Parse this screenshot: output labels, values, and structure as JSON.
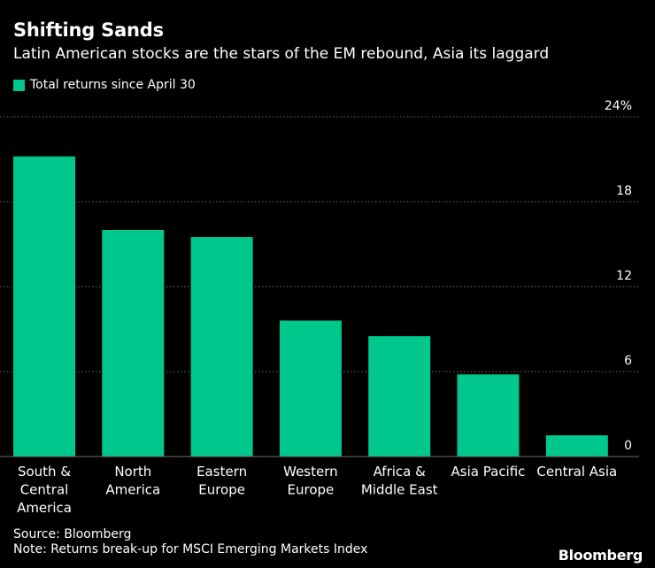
{
  "title": "Shifting Sands",
  "subtitle": "Latin American stocks are the stars of the EM rebound, Asia its laggard",
  "legend_label": "Total returns since April 30",
  "source": "Source: Bloomberg",
  "note": "Note: Returns break-up for MSCI Emerging Markets Index",
  "brand": "Bloomberg",
  "colors": {
    "bar": "#00c88c",
    "background": "#000000",
    "grid": "#6e6e6e",
    "text": "#ffffff"
  },
  "chart_data": {
    "type": "bar",
    "categories": [
      [
        "South &",
        "Central",
        "America"
      ],
      [
        "North",
        "America"
      ],
      [
        "Eastern",
        "Europe"
      ],
      [
        "Western",
        "Europe"
      ],
      [
        "Africa &",
        "Middle East"
      ],
      [
        "Asia Pacific"
      ],
      [
        "Central Asia"
      ]
    ],
    "series": [
      {
        "name": "Total returns since April 30",
        "values": [
          21.2,
          16.0,
          15.5,
          9.6,
          8.5,
          5.8,
          1.5
        ]
      }
    ],
    "ylim": [
      0,
      24
    ],
    "yticks": [
      0,
      6,
      12,
      18,
      24
    ],
    "ytick_labels": [
      "0",
      "6",
      "12",
      "18",
      "24%"
    ],
    "grid": true,
    "y_axis_position": "right",
    "legend_position": "top-left"
  }
}
